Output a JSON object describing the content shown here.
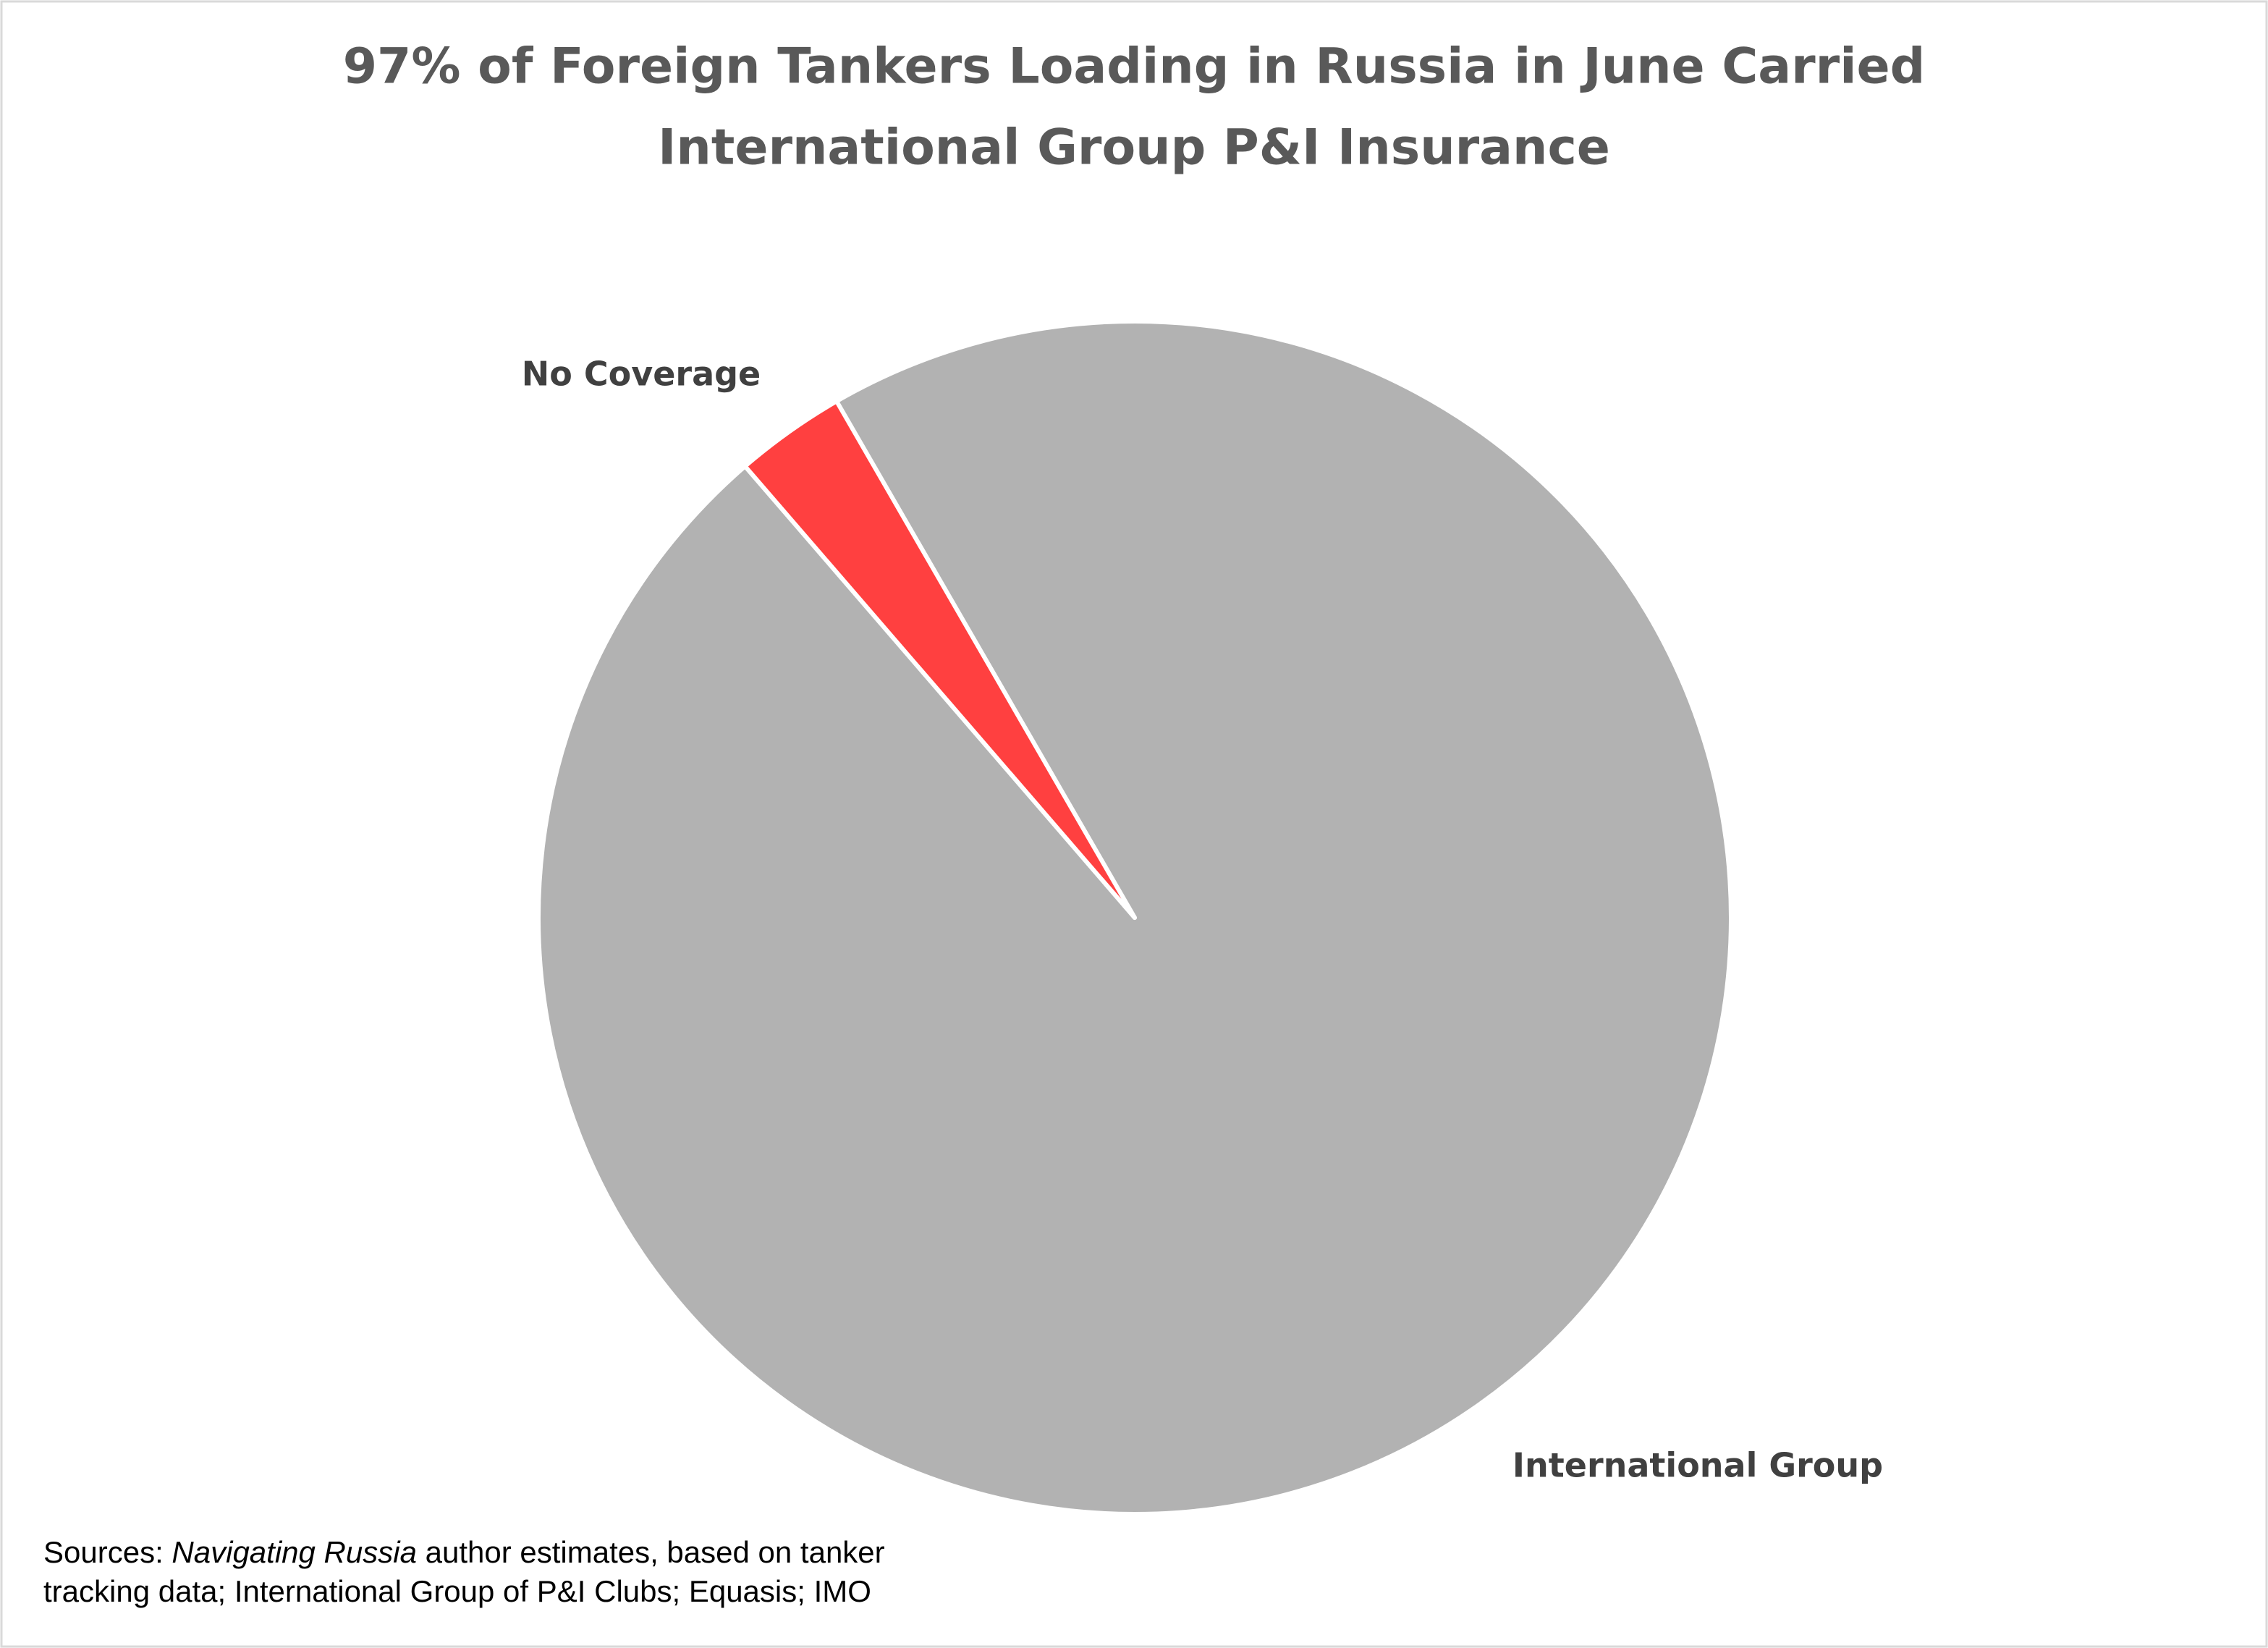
{
  "chart_data": {
    "type": "pie",
    "title": [
      "97% of Foreign Tankers Loading in Russia in June Carried",
      "International Group P&I Insurance"
    ],
    "categories": [
      "International Group",
      "No Coverage"
    ],
    "values": [
      97,
      3
    ],
    "colors": [
      "#b2b2b2",
      "#ff4040"
    ],
    "source": {
      "prefix": "Sources: ",
      "italic": "Navigating Russia",
      "suffix": " author estimates, based on tanker tracking data; International Group of P&I Clubs; Equasis; IMO"
    }
  }
}
